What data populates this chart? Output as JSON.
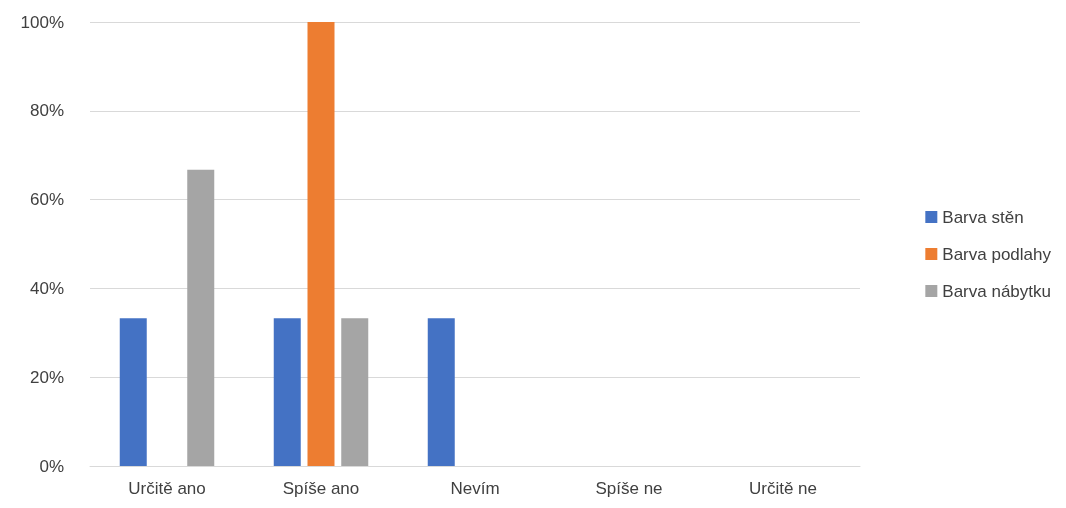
{
  "chart_data": {
    "type": "bar",
    "categories": [
      "Určitě ano",
      "Spíše ano",
      "Nevím",
      "Spíše ne",
      "Určitě ne"
    ],
    "series": [
      {
        "name": "Barva stěn",
        "color": "#4472c4",
        "values": [
          33.3,
          33.3,
          33.3,
          0,
          0
        ]
      },
      {
        "name": "Barva podlahy",
        "color": "#ed7d31",
        "values": [
          0,
          100,
          0,
          0,
          0
        ]
      },
      {
        "name": "Barva nábytku",
        "color": "#a5a5a5",
        "values": [
          66.7,
          33.3,
          0,
          0,
          0
        ]
      }
    ],
    "ylim": [
      0,
      100
    ],
    "yticks": [
      {
        "value": 0,
        "label": "0%"
      },
      {
        "value": 20,
        "label": "20%"
      },
      {
        "value": 40,
        "label": "40%"
      },
      {
        "value": 60,
        "label": "60%"
      },
      {
        "value": 80,
        "label": "80%"
      },
      {
        "value": 100,
        "label": "100%"
      }
    ],
    "grid": "y",
    "legend": "right"
  }
}
